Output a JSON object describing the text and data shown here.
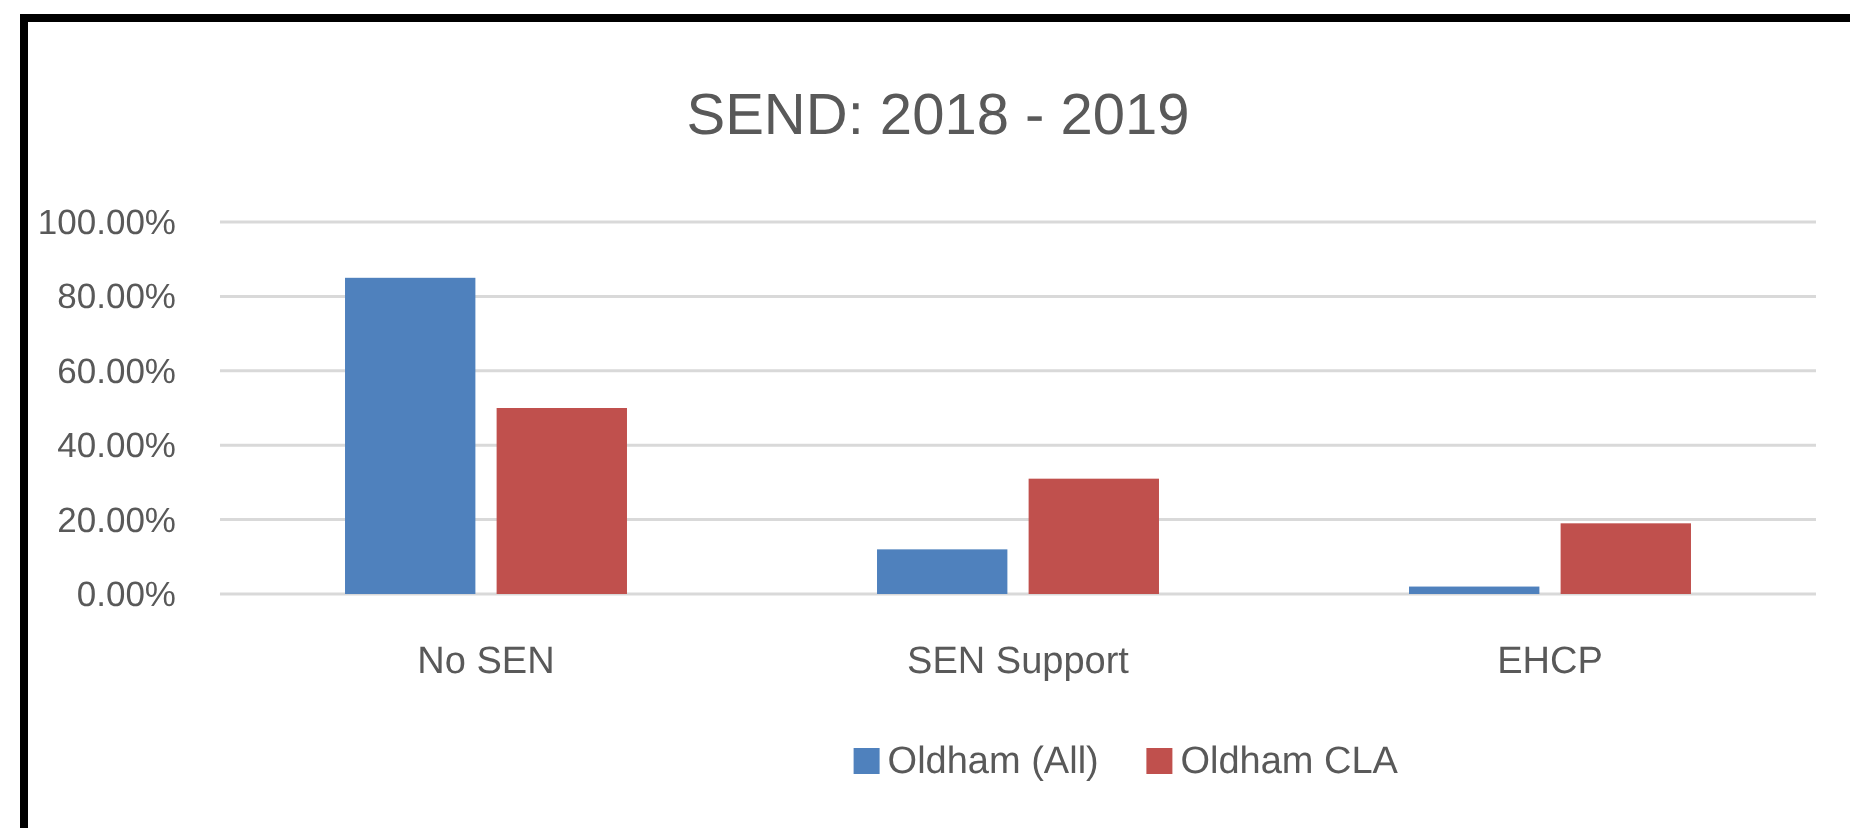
{
  "chart_data": {
    "type": "bar",
    "title": "SEND: 2018 - 2019",
    "categories": [
      "No SEN",
      "SEN Support",
      "EHCP"
    ],
    "series": [
      {
        "name": "Oldham (All)",
        "color": "#4f81bd",
        "values": [
          85,
          12,
          2
        ]
      },
      {
        "name": "Oldham CLA",
        "color": "#c0504d",
        "values": [
          50,
          31,
          19
        ]
      }
    ],
    "ylim": [
      0,
      100
    ],
    "yticks": [
      {
        "value": 0,
        "label": "0.00%"
      },
      {
        "value": 20,
        "label": "20.00%"
      },
      {
        "value": 40,
        "label": "40.00%"
      },
      {
        "value": 60,
        "label": "60.00%"
      },
      {
        "value": 80,
        "label": "80.00%"
      },
      {
        "value": 100,
        "label": "100.00%"
      }
    ],
    "grid": "y",
    "legend": "bottom"
  }
}
